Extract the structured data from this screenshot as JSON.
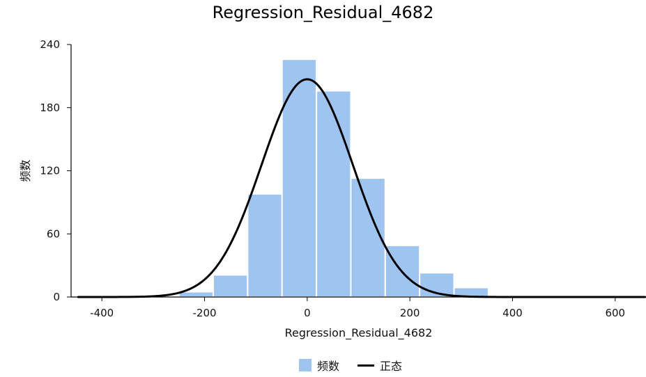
{
  "chart_data": {
    "type": "bar",
    "title": "Regression_Residual_4682",
    "xlabel": "Regression_Residual_4682",
    "ylabel": "频数",
    "xlim": [
      -460,
      660
    ],
    "ylim": [
      0,
      240
    ],
    "xticks": [
      -400,
      -200,
      0,
      200,
      400,
      600
    ],
    "yticks": [
      0,
      60,
      120,
      180,
      240
    ],
    "bins": [
      {
        "x0": -250,
        "x1": -183,
        "count": 5
      },
      {
        "x0": -183,
        "x1": -116,
        "count": 21
      },
      {
        "x0": -116,
        "x1": -49,
        "count": 98
      },
      {
        "x0": -49,
        "x1": 18,
        "count": 226
      },
      {
        "x0": 18,
        "x1": 85,
        "count": 196
      },
      {
        "x0": 85,
        "x1": 152,
        "count": 113
      },
      {
        "x0": 152,
        "x1": 219,
        "count": 49
      },
      {
        "x0": 219,
        "x1": 286,
        "count": 23
      },
      {
        "x0": 286,
        "x1": 353,
        "count": 9
      },
      {
        "x0": 353,
        "x1": 420,
        "count": 1
      },
      {
        "x0": 420,
        "x1": 487,
        "count": 1
      },
      {
        "x0": 487,
        "x1": 554,
        "count": 0
      }
    ],
    "normal_curve": {
      "mean": 0,
      "sd": 89,
      "peak": 207
    },
    "bar_color": "#a0c4f0",
    "curve_color": "#000000",
    "legend_position": "bottom",
    "grid": false
  },
  "legend": {
    "hist_label": "频数",
    "curve_label": "正态"
  }
}
